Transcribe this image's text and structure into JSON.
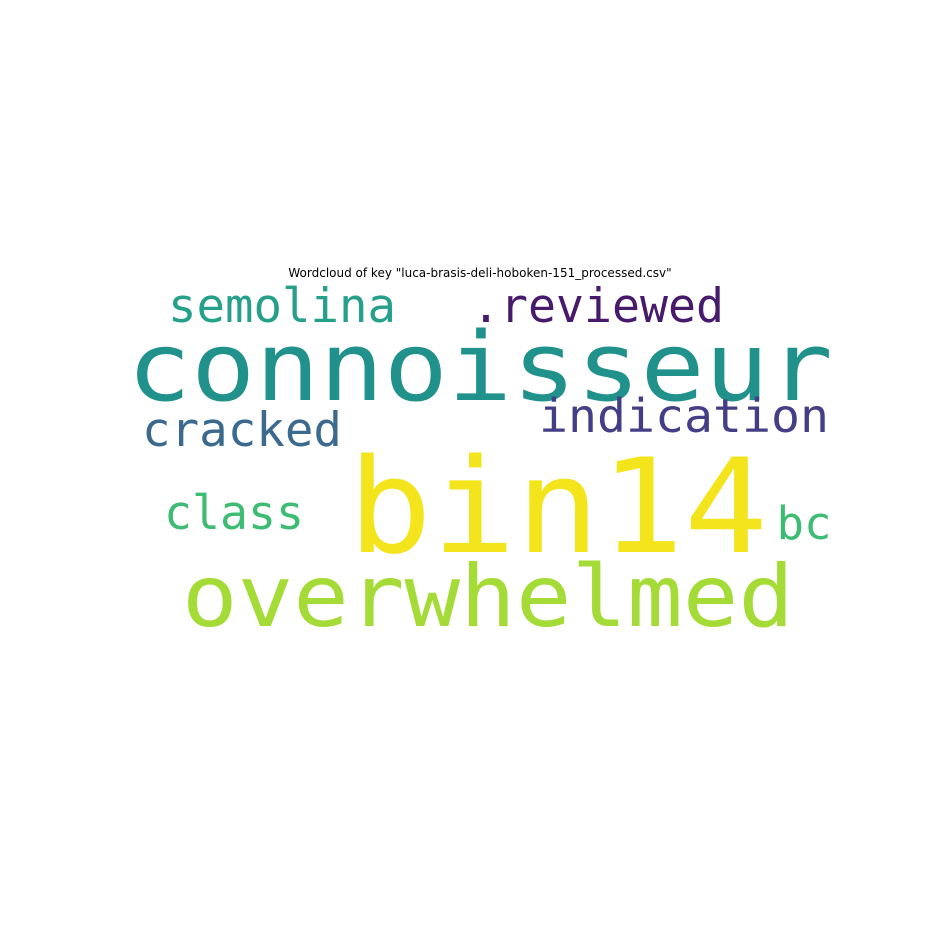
{
  "chart_data": {
    "type": "wordcloud",
    "title": "Wordcloud of key \"luca-brasis-deli-hoboken-151_processed.csv\"",
    "words": [
      {
        "text": "bin14",
        "color": "#f3e41c"
      },
      {
        "text": "connoisseur",
        "color": "#21918c"
      },
      {
        "text": "overwhelmed",
        "color": "#a5db36"
      },
      {
        "text": "semolina",
        "color": "#26a08a"
      },
      {
        "text": ".reviewed",
        "color": "#481a6c"
      },
      {
        "text": "indication",
        "color": "#433e85"
      },
      {
        "text": "cracked",
        "color": "#3b6a8e"
      },
      {
        "text": "class",
        "color": "#3fbc73"
      },
      {
        "text": "bc",
        "color": "#3fbc73"
      }
    ]
  }
}
